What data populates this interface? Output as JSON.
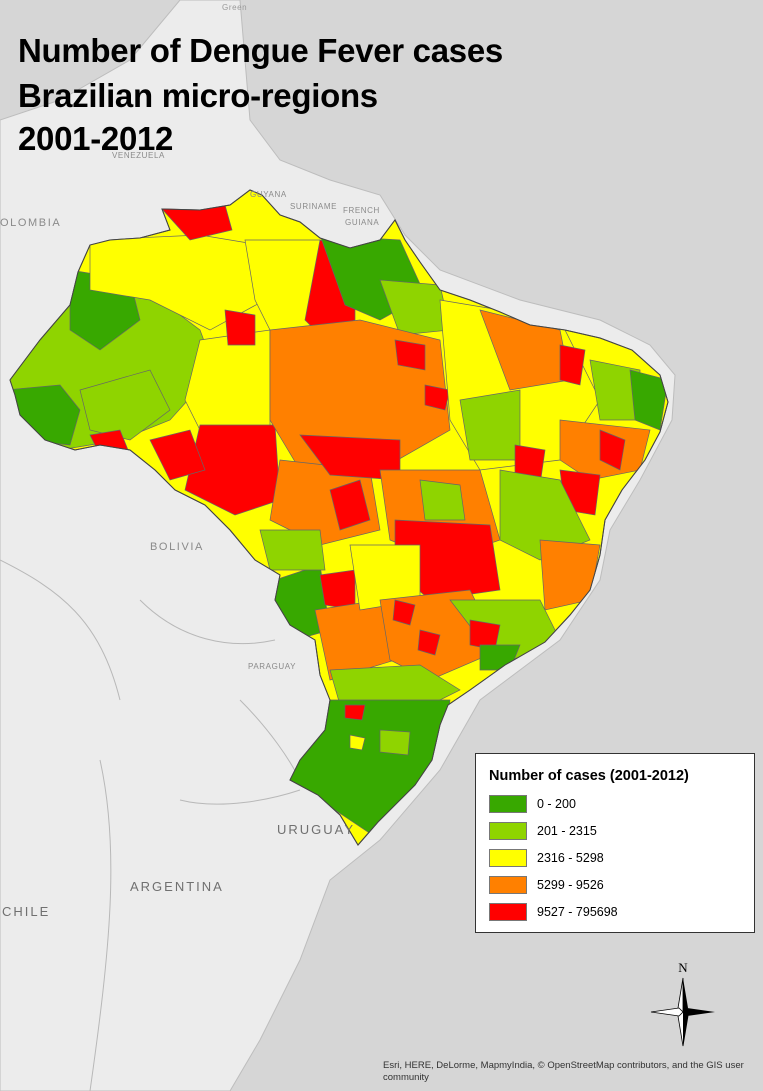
{
  "title": {
    "line1": "Number of Dengue Fever cases",
    "line2": "Brazilian micro-regions",
    "line3": "2001-2012"
  },
  "country_labels": {
    "colombia": "OLOMBIA",
    "venezuela": "VENEZUELA",
    "guyana": "GUYANA",
    "suriname": "SURINAME",
    "french_guiana_1": "FRENCH",
    "french_guiana_2": "GUIANA",
    "greenland_fragment": "Green",
    "bolivia": "BOLIVIA",
    "paraguay": "PARAGUAY",
    "uruguay": "URUGUAY",
    "argentina": "ARGENTINA",
    "chile": "CHILE"
  },
  "legend": {
    "title": "Number of cases (2001-2012)",
    "classes": [
      {
        "label": "0 - 200",
        "color": "#38a800"
      },
      {
        "label": "201 - 2315",
        "color": "#8fd400"
      },
      {
        "label": "2316 - 5298",
        "color": "#ffff00"
      },
      {
        "label": "5299 - 9526",
        "color": "#ff8000"
      },
      {
        "label": "9527 - 795698",
        "color": "#ff0000"
      }
    ]
  },
  "north_arrow": {
    "label": "N"
  },
  "attribution": "Esri, HERE, DeLorme, MapmyIndia, © OpenStreetMap contributors, and the GIS user community",
  "colors": {
    "ocean": "#d6d6d6",
    "land": "#ececec",
    "border": "#777777"
  }
}
